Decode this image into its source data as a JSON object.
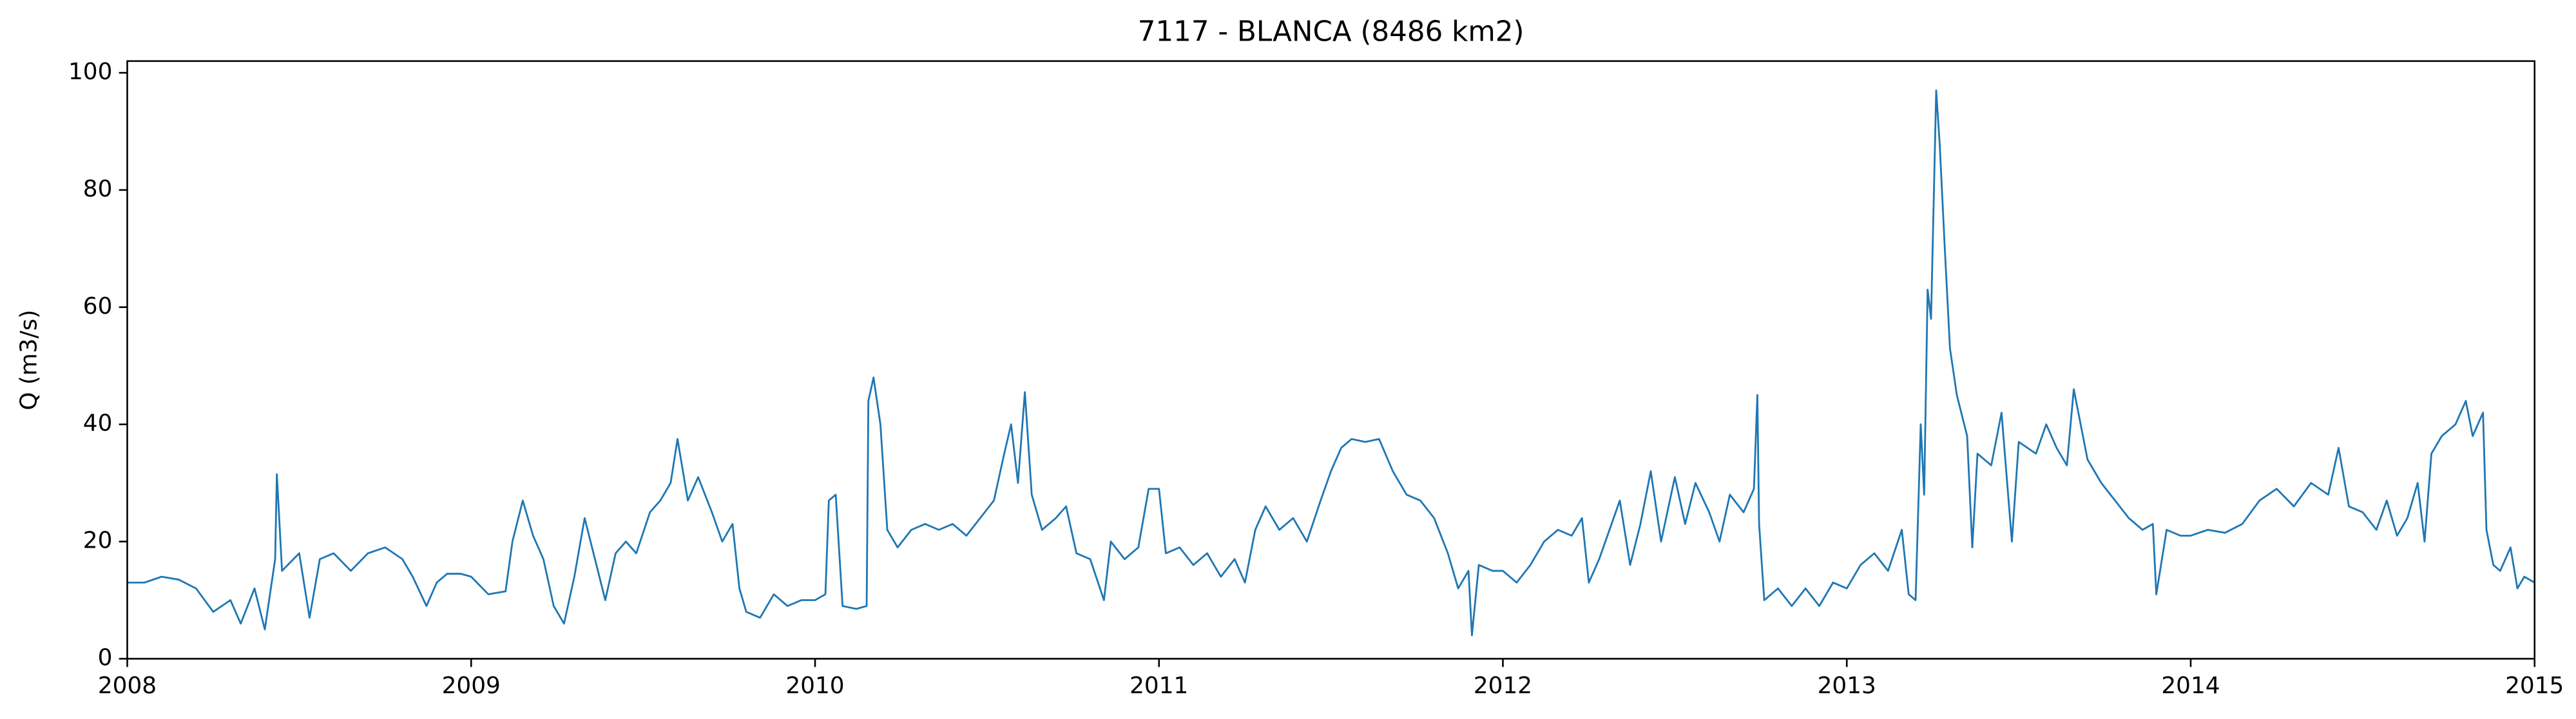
{
  "chart_data": {
    "type": "line",
    "title": "7117 - BLANCA (8486 km2)",
    "y_label": "Q (m3/s)",
    "color": "#1f77b4",
    "x": [
      2008.0,
      2008.05,
      2008.1,
      2008.15,
      2008.2,
      2008.25,
      2008.3,
      2008.33,
      2008.37,
      2008.4,
      2008.43,
      2008.435,
      2008.45,
      2008.5,
      2008.53,
      2008.56,
      2008.6,
      2008.65,
      2008.7,
      2008.75,
      2008.8,
      2008.83,
      2008.87,
      2008.9,
      2008.93,
      2008.97,
      2009.0,
      2009.05,
      2009.1,
      2009.12,
      2009.15,
      2009.18,
      2009.21,
      2009.24,
      2009.27,
      2009.3,
      2009.33,
      2009.36,
      2009.39,
      2009.42,
      2009.45,
      2009.48,
      2009.52,
      2009.55,
      2009.58,
      2009.6,
      2009.63,
      2009.66,
      2009.7,
      2009.73,
      2009.76,
      2009.78,
      2009.8,
      2009.84,
      2009.88,
      2009.92,
      2009.96,
      2010.0,
      2010.03,
      2010.04,
      2010.06,
      2010.08,
      2010.12,
      2010.15,
      2010.155,
      2010.17,
      2010.19,
      2010.21,
      2010.24,
      2010.28,
      2010.32,
      2010.36,
      2010.4,
      2010.44,
      2010.48,
      2010.52,
      2010.55,
      2010.57,
      2010.59,
      2010.61,
      2010.63,
      2010.66,
      2010.7,
      2010.73,
      2010.76,
      2010.8,
      2010.84,
      2010.86,
      2010.9,
      2010.94,
      2010.97,
      2011.0,
      2011.02,
      2011.06,
      2011.1,
      2011.14,
      2011.18,
      2011.22,
      2011.25,
      2011.28,
      2011.31,
      2011.35,
      2011.39,
      2011.43,
      2011.47,
      2011.5,
      2011.53,
      2011.56,
      2011.6,
      2011.64,
      2011.68,
      2011.72,
      2011.76,
      2011.8,
      2011.84,
      2011.87,
      2011.9,
      2011.91,
      2011.93,
      2011.97,
      2012.0,
      2012.04,
      2012.08,
      2012.12,
      2012.16,
      2012.2,
      2012.23,
      2012.25,
      2012.28,
      2012.31,
      2012.34,
      2012.37,
      2012.4,
      2012.43,
      2012.46,
      2012.5,
      2012.53,
      2012.56,
      2012.6,
      2012.63,
      2012.66,
      2012.7,
      2012.73,
      2012.74,
      2012.745,
      2012.76,
      2012.8,
      2012.84,
      2012.88,
      2012.92,
      2012.96,
      2013.0,
      2013.04,
      2013.08,
      2013.12,
      2013.16,
      2013.18,
      2013.2,
      2013.215,
      2013.225,
      2013.235,
      2013.245,
      2013.26,
      2013.27,
      2013.285,
      2013.3,
      2013.32,
      2013.35,
      2013.365,
      2013.38,
      2013.42,
      2013.45,
      2013.48,
      2013.5,
      2013.55,
      2013.58,
      2013.61,
      2013.64,
      2013.66,
      2013.7,
      2013.74,
      2013.78,
      2013.82,
      2013.86,
      2013.89,
      2013.9,
      2013.93,
      2013.97,
      2014.0,
      2014.05,
      2014.1,
      2014.15,
      2014.2,
      2014.25,
      2014.3,
      2014.35,
      2014.4,
      2014.43,
      2014.46,
      2014.5,
      2014.54,
      2014.57,
      2014.6,
      2014.63,
      2014.66,
      2014.68,
      2014.7,
      2014.73,
      2014.77,
      2014.8,
      2014.82,
      2014.85,
      2014.86,
      2014.88,
      2014.9,
      2014.93,
      2014.95,
      2014.97,
      2015.0
    ],
    "values": [
      13,
      13,
      14,
      13.5,
      12,
      8,
      10,
      6,
      12,
      5,
      17,
      31.5,
      15,
      18,
      7,
      17,
      18,
      15,
      18,
      19,
      17,
      14,
      9,
      13,
      14.5,
      14.5,
      14,
      11,
      11.5,
      20,
      27,
      21,
      17,
      9,
      6,
      14,
      24,
      17,
      10,
      18,
      20,
      18,
      25,
      27,
      30,
      37.5,
      27,
      31,
      25,
      20,
      23,
      12,
      8,
      7,
      11,
      9,
      10,
      10,
      11,
      27,
      28,
      9,
      8.5,
      9,
      44,
      48,
      40,
      22,
      19,
      22,
      23,
      22,
      23,
      21,
      24,
      27,
      35,
      40,
      30,
      45.5,
      28,
      22,
      24,
      26,
      18,
      17,
      10,
      20,
      17,
      19,
      29,
      29,
      18,
      19,
      16,
      18,
      14,
      17,
      13,
      22,
      26,
      22,
      24,
      20,
      27,
      32,
      36,
      37.5,
      37,
      37.5,
      32,
      28,
      27,
      24,
      18,
      12,
      15,
      4,
      16,
      15,
      15,
      13,
      16,
      20,
      22,
      21,
      24,
      13,
      17,
      22,
      27,
      16,
      23,
      32,
      20,
      31,
      23,
      30,
      25,
      20,
      28,
      25,
      29,
      45,
      23,
      10,
      12,
      9,
      12,
      9,
      13,
      12,
      16,
      18,
      15,
      22,
      11,
      10,
      40,
      28,
      63,
      58,
      97,
      88,
      70,
      53,
      45,
      38,
      19,
      35,
      33,
      42,
      20,
      37,
      35,
      40,
      36,
      33,
      46,
      34,
      30,
      27,
      24,
      22,
      23,
      11,
      22,
      21,
      21,
      22,
      21.5,
      23,
      27,
      29,
      26,
      30,
      28,
      36,
      26,
      25,
      22,
      27,
      21,
      24,
      30,
      20,
      35,
      38,
      40,
      44,
      38,
      42,
      22,
      16,
      15,
      19,
      12,
      14,
      13
    ],
    "xlim": [
      2008,
      2015
    ],
    "xticks": [
      2008,
      2009,
      2010,
      2011,
      2012,
      2013,
      2014,
      2015
    ],
    "ylim": [
      0,
      102
    ],
    "yticks": [
      0,
      20,
      40,
      60,
      80,
      100
    ]
  }
}
